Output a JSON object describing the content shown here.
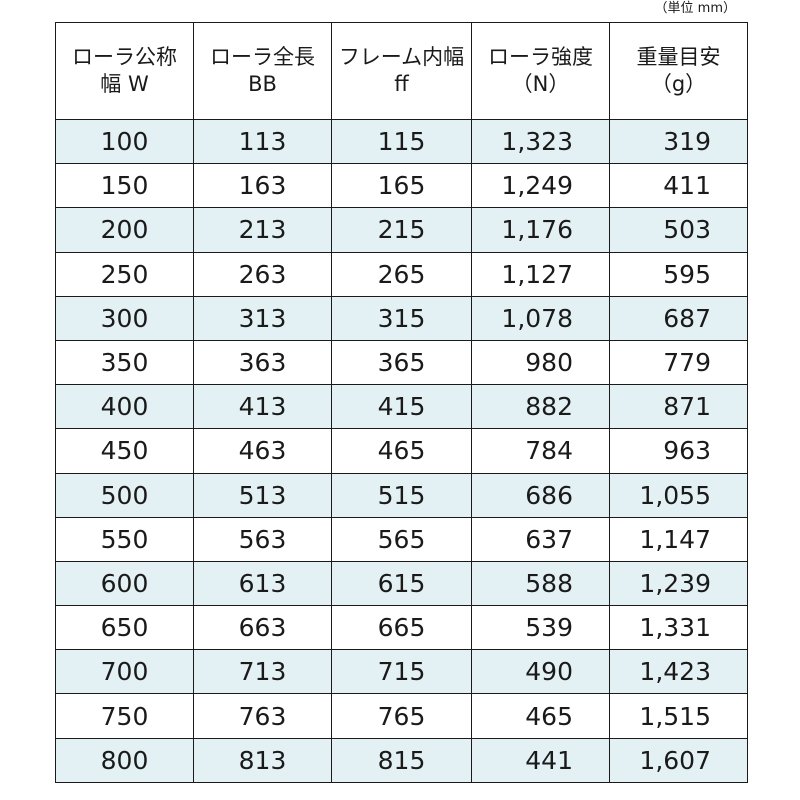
{
  "unit_note": "（単位 mm）",
  "headers": [
    {
      "line1": "ローラ公称",
      "line2": "幅 W"
    },
    {
      "line1": "ローラ全長",
      "line2": "BB"
    },
    {
      "line1": "フレーム内幅",
      "line2": "ff"
    },
    {
      "line1": "ローラ強度",
      "line2": "（N）"
    },
    {
      "line1": "重量目安",
      "line2": "（g）"
    }
  ],
  "rows": [
    [
      "100",
      "113",
      "115",
      "1,323",
      "319"
    ],
    [
      "150",
      "163",
      "165",
      "1,249",
      "411"
    ],
    [
      "200",
      "213",
      "215",
      "1,176",
      "503"
    ],
    [
      "250",
      "263",
      "265",
      "1,127",
      "595"
    ],
    [
      "300",
      "313",
      "315",
      "1,078",
      "687"
    ],
    [
      "350",
      "363",
      "365",
      "980",
      "779"
    ],
    [
      "400",
      "413",
      "415",
      "882",
      "871"
    ],
    [
      "450",
      "463",
      "465",
      "784",
      "963"
    ],
    [
      "500",
      "513",
      "515",
      "686",
      "1,055"
    ],
    [
      "550",
      "563",
      "565",
      "637",
      "1,147"
    ],
    [
      "600",
      "613",
      "615",
      "588",
      "1,239"
    ],
    [
      "650",
      "663",
      "665",
      "539",
      "1,331"
    ],
    [
      "700",
      "713",
      "715",
      "490",
      "1,423"
    ],
    [
      "750",
      "763",
      "765",
      "465",
      "1,515"
    ],
    [
      "800",
      "813",
      "815",
      "441",
      "1,607"
    ]
  ]
}
